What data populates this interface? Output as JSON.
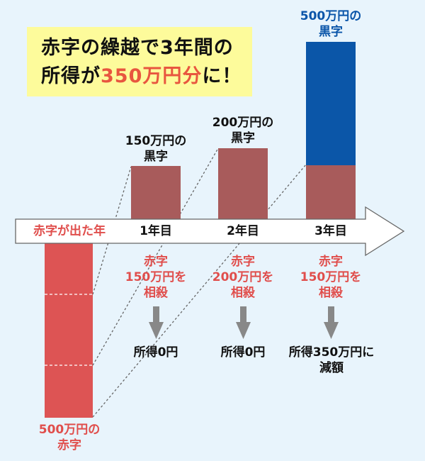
{
  "headline": {
    "line1": "赤字の繰越で3年間の",
    "line2_prefix": "所得が",
    "line2_highlight": "350万円分",
    "line2_suffix": "に！"
  },
  "timeline": {
    "deficit_year": "赤字が出た年",
    "year1": "1年目",
    "year2": "2年目",
    "year3": "3年目"
  },
  "profits": {
    "year1": [
      "150万円の",
      "黒字"
    ],
    "year2": [
      "200万円の",
      "黒字"
    ],
    "year3": [
      "500万円の",
      "黒字"
    ]
  },
  "deficit_label": [
    "500万円の",
    "赤字"
  ],
  "offsets": {
    "year1": [
      "赤字",
      "150万円を",
      "相殺"
    ],
    "year2": [
      "赤字",
      "200万円を",
      "相殺"
    ],
    "year3": [
      "赤字",
      "150万円を",
      "相殺"
    ]
  },
  "results": {
    "year1": "所得0円",
    "year2": "所得0円",
    "year3": [
      "所得350万円に",
      "減額"
    ]
  },
  "colors": {
    "background": "#e8f4fc",
    "callout": "#fdfb9b",
    "deficit_red": "#dd5454",
    "offset_brown": "#a85b5b",
    "profit_blue": "#0b56a8",
    "arrow_gray": "#888888",
    "accent_text_red": "#e04e4c"
  },
  "chart_data": {
    "type": "bar",
    "categories": [
      "赤字が出た年",
      "1年目",
      "2年目",
      "3年目"
    ],
    "series": [
      {
        "values": [
          -500,
          0,
          0,
          0
        ]
      },
      {
        "values": [
          0,
          150,
          200,
          150
        ]
      },
      {
        "values": [
          0,
          0,
          0,
          350
        ]
      }
    ]
  }
}
